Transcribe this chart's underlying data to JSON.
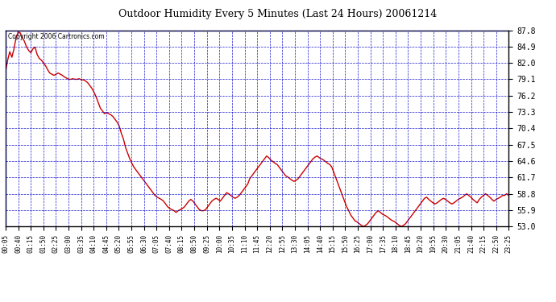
{
  "title": "Outdoor Humidity Every 5 Minutes (Last 24 Hours) 20061214",
  "copyright_text": "Copyright 2006 Cartronics.com",
  "ylim": [
    53.0,
    87.8
  ],
  "yticks": [
    53.0,
    55.9,
    58.8,
    61.7,
    64.6,
    67.5,
    70.4,
    73.3,
    76.2,
    79.1,
    82.0,
    84.9,
    87.8
  ],
  "line_color": "#cc0000",
  "bg_color": "#ffffff",
  "plot_bg_color": "#ffffff",
  "grid_color": "#0000cc",
  "title_color": "#000000",
  "copyright_color": "#000000",
  "x_labels": [
    "00:05",
    "00:40",
    "01:15",
    "01:50",
    "02:25",
    "03:00",
    "03:35",
    "04:10",
    "04:45",
    "05:20",
    "05:55",
    "06:30",
    "07:05",
    "07:40",
    "08:15",
    "08:50",
    "09:25",
    "10:00",
    "10:35",
    "11:10",
    "11:45",
    "12:20",
    "12:55",
    "13:30",
    "14:05",
    "14:40",
    "15:15",
    "15:50",
    "16:25",
    "17:00",
    "17:35",
    "18:10",
    "18:45",
    "19:20",
    "19:55",
    "20:30",
    "21:05",
    "21:40",
    "22:15",
    "22:50",
    "23:25"
  ],
  "humidity_values": [
    80.5,
    82.5,
    84.0,
    83.0,
    84.5,
    86.5,
    87.5,
    87.3,
    86.5,
    85.8,
    84.8,
    84.2,
    83.8,
    84.5,
    84.8,
    83.5,
    82.8,
    82.5,
    82.0,
    81.5,
    80.8,
    80.2,
    80.0,
    79.8,
    80.0,
    80.2,
    80.0,
    79.8,
    79.5,
    79.3,
    79.1,
    79.1,
    79.2,
    79.1,
    79.1,
    79.2,
    79.0,
    79.0,
    78.8,
    78.5,
    78.0,
    77.5,
    76.8,
    76.0,
    75.0,
    74.0,
    73.5,
    73.0,
    73.2,
    73.0,
    72.8,
    72.5,
    72.0,
    71.5,
    70.8,
    69.5,
    68.5,
    67.0,
    66.0,
    65.0,
    64.2,
    63.5,
    63.0,
    62.5,
    62.0,
    61.5,
    61.0,
    60.5,
    60.0,
    59.5,
    59.0,
    58.5,
    58.2,
    58.0,
    57.8,
    57.5,
    57.0,
    56.5,
    56.2,
    56.0,
    55.8,
    55.5,
    55.8,
    56.0,
    56.2,
    56.5,
    57.0,
    57.5,
    57.8,
    57.5,
    57.0,
    56.5,
    56.0,
    55.8,
    55.8,
    56.0,
    56.5,
    57.0,
    57.5,
    57.8,
    58.0,
    57.8,
    57.5,
    58.0,
    58.5,
    59.0,
    58.8,
    58.5,
    58.2,
    58.0,
    58.2,
    58.5,
    59.0,
    59.5,
    60.0,
    60.5,
    61.5,
    62.0,
    62.5,
    63.0,
    63.5,
    64.0,
    64.5,
    65.0,
    65.5,
    65.2,
    64.8,
    64.5,
    64.2,
    64.0,
    63.5,
    63.0,
    62.5,
    62.0,
    61.8,
    61.5,
    61.2,
    61.0,
    61.2,
    61.5,
    62.0,
    62.5,
    63.0,
    63.5,
    64.0,
    64.5,
    65.0,
    65.3,
    65.5,
    65.2,
    65.0,
    64.8,
    64.5,
    64.2,
    64.0,
    63.5,
    62.5,
    61.5,
    60.5,
    59.5,
    58.5,
    57.5,
    56.5,
    55.8,
    55.0,
    54.5,
    54.0,
    53.8,
    53.5,
    53.2,
    53.0,
    53.2,
    53.5,
    54.0,
    54.5,
    55.0,
    55.5,
    55.8,
    55.5,
    55.2,
    55.0,
    54.8,
    54.5,
    54.2,
    54.0,
    53.8,
    53.5,
    53.2,
    53.0,
    53.2,
    53.5,
    54.0,
    54.5,
    55.0,
    55.5,
    56.0,
    56.5,
    57.0,
    57.5,
    58.0,
    58.2,
    57.8,
    57.5,
    57.2,
    57.0,
    57.2,
    57.5,
    57.8,
    58.0,
    57.8,
    57.5,
    57.2,
    57.0,
    57.2,
    57.5,
    57.8,
    58.0,
    58.2,
    58.5,
    58.8,
    58.5,
    58.2,
    57.8,
    57.5,
    57.2,
    57.8,
    58.2,
    58.5,
    58.8,
    58.5,
    58.2,
    57.8,
    57.5,
    57.8,
    58.0,
    58.2,
    58.5,
    58.5,
    58.8,
    58.5
  ]
}
